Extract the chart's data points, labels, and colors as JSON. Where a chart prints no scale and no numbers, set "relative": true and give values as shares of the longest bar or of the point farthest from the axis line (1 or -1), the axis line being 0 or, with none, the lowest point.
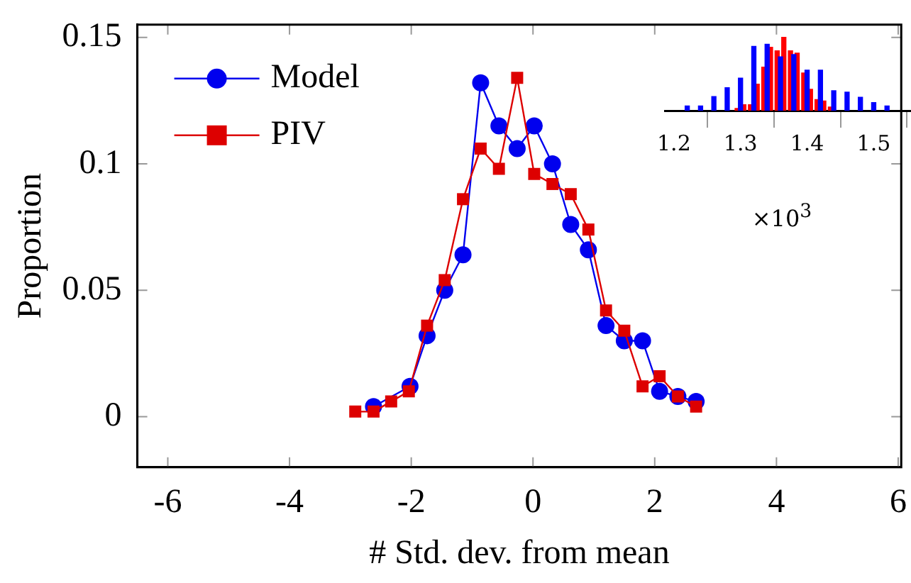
{
  "chart_data": [
    {
      "type": "line",
      "xlabel": "# Std. dev. from mean",
      "ylabel": "Proportion",
      "xlim": [
        -6.5,
        6.05
      ],
      "xticks": [
        -6,
        -4,
        -2,
        0,
        2,
        4,
        6
      ],
      "ylim": [
        -0.02,
        0.155
      ],
      "yticks": [
        0,
        0.05,
        0.1,
        0.15
      ],
      "legend": "top left",
      "series": [
        {
          "name": "Model",
          "color": "#0000ee",
          "marker": "circle",
          "x": [
            -2.62,
            -2.02,
            -1.74,
            -1.45,
            -1.15,
            -0.86,
            -0.56,
            -0.26,
            0.02,
            0.32,
            0.62,
            0.91,
            1.2,
            1.5,
            1.8,
            2.08,
            2.38,
            2.68
          ],
          "values": [
            0.004,
            0.012,
            0.032,
            0.05,
            0.064,
            0.132,
            0.115,
            0.106,
            0.115,
            0.1,
            0.076,
            0.066,
            0.036,
            0.03,
            0.03,
            0.01,
            0.008,
            0.006
          ]
        },
        {
          "name": "PIV",
          "color": "#dd0000",
          "marker": "square",
          "x": [
            -2.92,
            -2.62,
            -2.33,
            -2.04,
            -1.74,
            -1.45,
            -1.15,
            -0.86,
            -0.56,
            -0.26,
            0.02,
            0.32,
            0.62,
            0.91,
            1.2,
            1.5,
            1.8,
            2.08,
            2.38,
            2.68
          ],
          "values": [
            0.002,
            0.002,
            0.006,
            0.01,
            0.036,
            0.054,
            0.086,
            0.106,
            0.098,
            0.134,
            0.096,
            0.092,
            0.088,
            0.074,
            0.042,
            0.034,
            0.012,
            0.016,
            0.008,
            0.004
          ]
        }
      ]
    },
    {
      "type": "bar",
      "relative": true,
      "xlim": [
        1.187,
        1.556
      ],
      "xticks": [
        1.2,
        1.3,
        1.4,
        1.5
      ],
      "xlabel": "×10$^{3}$",
      "series": [
        {
          "color": "#0000ff",
          "x": [
            1.22,
            1.24,
            1.26,
            1.28,
            1.3,
            1.32,
            1.34,
            1.36,
            1.38,
            1.4,
            1.42,
            1.44,
            1.46,
            1.48,
            1.5,
            1.52
          ],
          "values": [
            0.064,
            0.064,
            0.19,
            0.31,
            0.44,
            0.87,
            0.9,
            0.73,
            0.76,
            0.55,
            0.55,
            0.27,
            0.25,
            0.18,
            0.11,
            0.064
          ]
        },
        {
          "color": "#ff0000",
          "x": [
            1.295,
            1.305,
            1.315,
            1.325,
            1.335,
            1.345,
            1.355,
            1.365,
            1.375,
            1.385,
            1.395,
            1.405,
            1.415,
            1.425,
            1.435
          ],
          "values": [
            0.03,
            0.08,
            0.08,
            0.36,
            0.59,
            0.86,
            0.81,
            1,
            0.81,
            0.78,
            0.51,
            0.29,
            0.15,
            0.13,
            0.05
          ]
        }
      ]
    }
  ]
}
